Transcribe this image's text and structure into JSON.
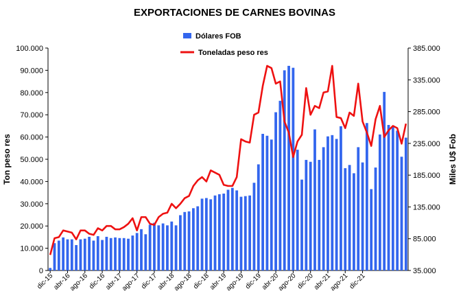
{
  "chart_data": {
    "type": "bar",
    "title": "EXPORTACIONES DE CARNES BOVINAS",
    "ylabel_left": "Ton peso res",
    "ylabel_right": "Miles U$ Fob",
    "ylim_left": [
      0,
      100000
    ],
    "ylim_right": [
      35000,
      385000
    ],
    "yticks_left": [
      "0",
      "10.000",
      "20.000",
      "30.000",
      "40.000",
      "50.000",
      "60.000",
      "70.000",
      "80.000",
      "90.000",
      "100.000"
    ],
    "yticks_right": [
      "35.000",
      "85.000",
      "135.000",
      "185.000",
      "235.000",
      "285.000",
      "335.000",
      "385.000"
    ],
    "x_tick_labels": [
      "dic-15",
      "abr-16",
      "ago-16",
      "dic-16",
      "abr-17",
      "ago-17",
      "dic-17",
      "abr-18",
      "ago-18",
      "dic-18",
      "abr-19",
      "ago-19",
      "dic-19",
      "abr-20",
      "ago-20",
      "dic-20",
      "abr-21",
      "ago-21",
      "dic-21"
    ],
    "legend_position": "top-center",
    "colors": {
      "bars": "#3366ee",
      "line": "#ee1111"
    },
    "series": [
      {
        "name": "Dólares FOB",
        "kind": "bar",
        "axis": "right",
        "values": [
          39000,
          78000,
          82000,
          87000,
          84000,
          84000,
          75000,
          84000,
          85000,
          88000,
          82000,
          89000,
          83000,
          88000,
          86000,
          87000,
          86000,
          86000,
          85000,
          90000,
          94000,
          100000,
          92000,
          107000,
          110000,
          106000,
          109000,
          106000,
          112000,
          106000,
          122000,
          127000,
          128000,
          133000,
          136000,
          148000,
          149000,
          147000,
          153000,
          155000,
          156000,
          162000,
          165000,
          161000,
          151000,
          152000,
          153000,
          173000,
          202000,
          250000,
          247000,
          241000,
          284000,
          302000,
          350000,
          357000,
          354000,
          225000,
          178000,
          209000,
          206000,
          257000,
          209000,
          229000,
          246000,
          248000,
          242000,
          262000,
          196000,
          201000,
          188000,
          229000,
          205000,
          267000,
          163000,
          197000,
          249000,
          316000,
          264000,
          262000,
          255000,
          214000,
          244000
        ]
      },
      {
        "name": "Toneladas peso res",
        "kind": "line",
        "axis": "left",
        "values": [
          7000,
          14500,
          15000,
          18000,
          17500,
          17000,
          14000,
          18000,
          18000,
          16500,
          16000,
          19000,
          18000,
          20000,
          20000,
          18500,
          18500,
          19500,
          21000,
          23500,
          18000,
          24000,
          24000,
          21000,
          20500,
          24000,
          25500,
          26000,
          30000,
          28000,
          30000,
          32500,
          33500,
          38000,
          40500,
          42000,
          40000,
          45000,
          44000,
          43000,
          38500,
          38000,
          38000,
          42000,
          59000,
          58000,
          57500,
          70000,
          71000,
          83000,
          92000,
          91000,
          84000,
          85000,
          67000,
          62000,
          51000,
          58000,
          61000,
          82000,
          70000,
          74000,
          73000,
          80000,
          80500,
          92000,
          69000,
          68500,
          64000,
          71000,
          69500,
          84000,
          67000,
          62000,
          56000,
          68000,
          74000,
          60000,
          63000,
          65000,
          64000,
          57000,
          66000
        ]
      }
    ]
  }
}
